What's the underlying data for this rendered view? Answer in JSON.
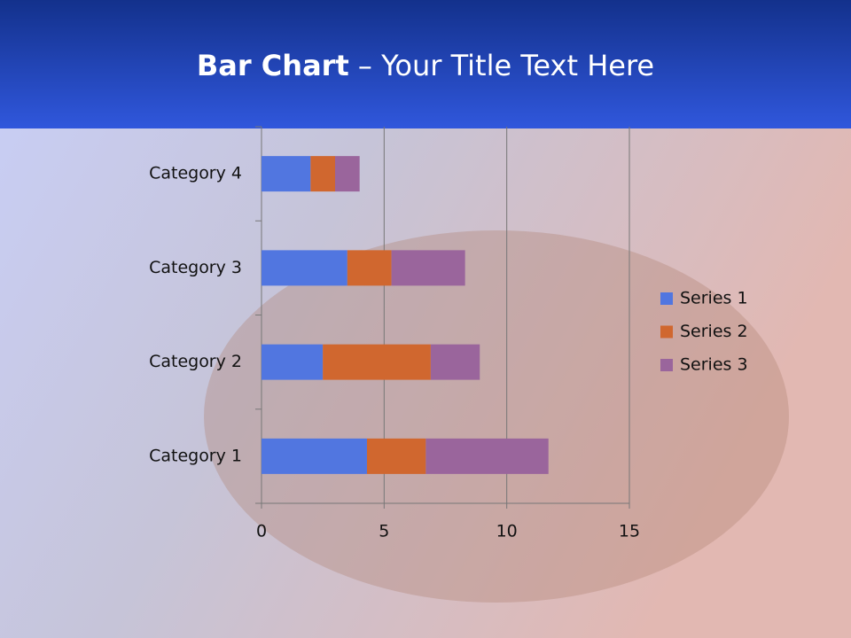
{
  "chart_data": {
    "type": "stacked-bar-horizontal",
    "title": [
      "Bar Chart",
      "– Your Title Text Here"
    ],
    "categories": [
      "Category 1",
      "Category 2",
      "Category 3",
      "Category 4"
    ],
    "series": [
      {
        "name": "Series 1",
        "color": "#5176e0",
        "values": [
          4.3,
          2.5,
          3.5,
          2
        ]
      },
      {
        "name": "Series 2",
        "color": "#d0672f",
        "values": [
          2.4,
          4.4,
          1.8,
          1
        ]
      },
      {
        "name": "Series 3",
        "color": "#9a659c",
        "values": [
          5,
          2,
          3,
          1
        ]
      }
    ],
    "xlim": [
      0,
      15
    ],
    "xticks": [
      0,
      5,
      10,
      15
    ],
    "grid": true,
    "legend": "right"
  }
}
